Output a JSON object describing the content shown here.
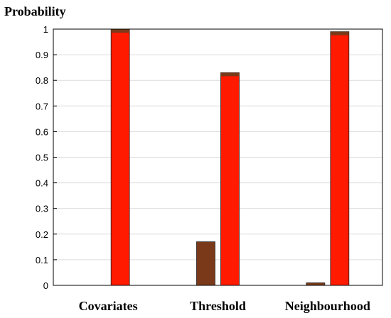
{
  "chart_data": {
    "type": "bar",
    "ylabel": "Probability",
    "categories": [
      "Covariates",
      "Threshold",
      "Neighbourhood"
    ],
    "series": [
      {
        "color": "#7a3a1a",
        "values": [
          0.0,
          0.17,
          0.01
        ]
      },
      {
        "color": "#ff1a00",
        "values": [
          1.0,
          0.83,
          0.99
        ]
      }
    ],
    "ylim": [
      0,
      1
    ],
    "yticks": [
      0,
      0.1,
      0.2,
      0.3,
      0.4,
      0.5,
      0.6,
      0.7,
      0.8,
      0.9,
      1
    ],
    "grid": true
  }
}
